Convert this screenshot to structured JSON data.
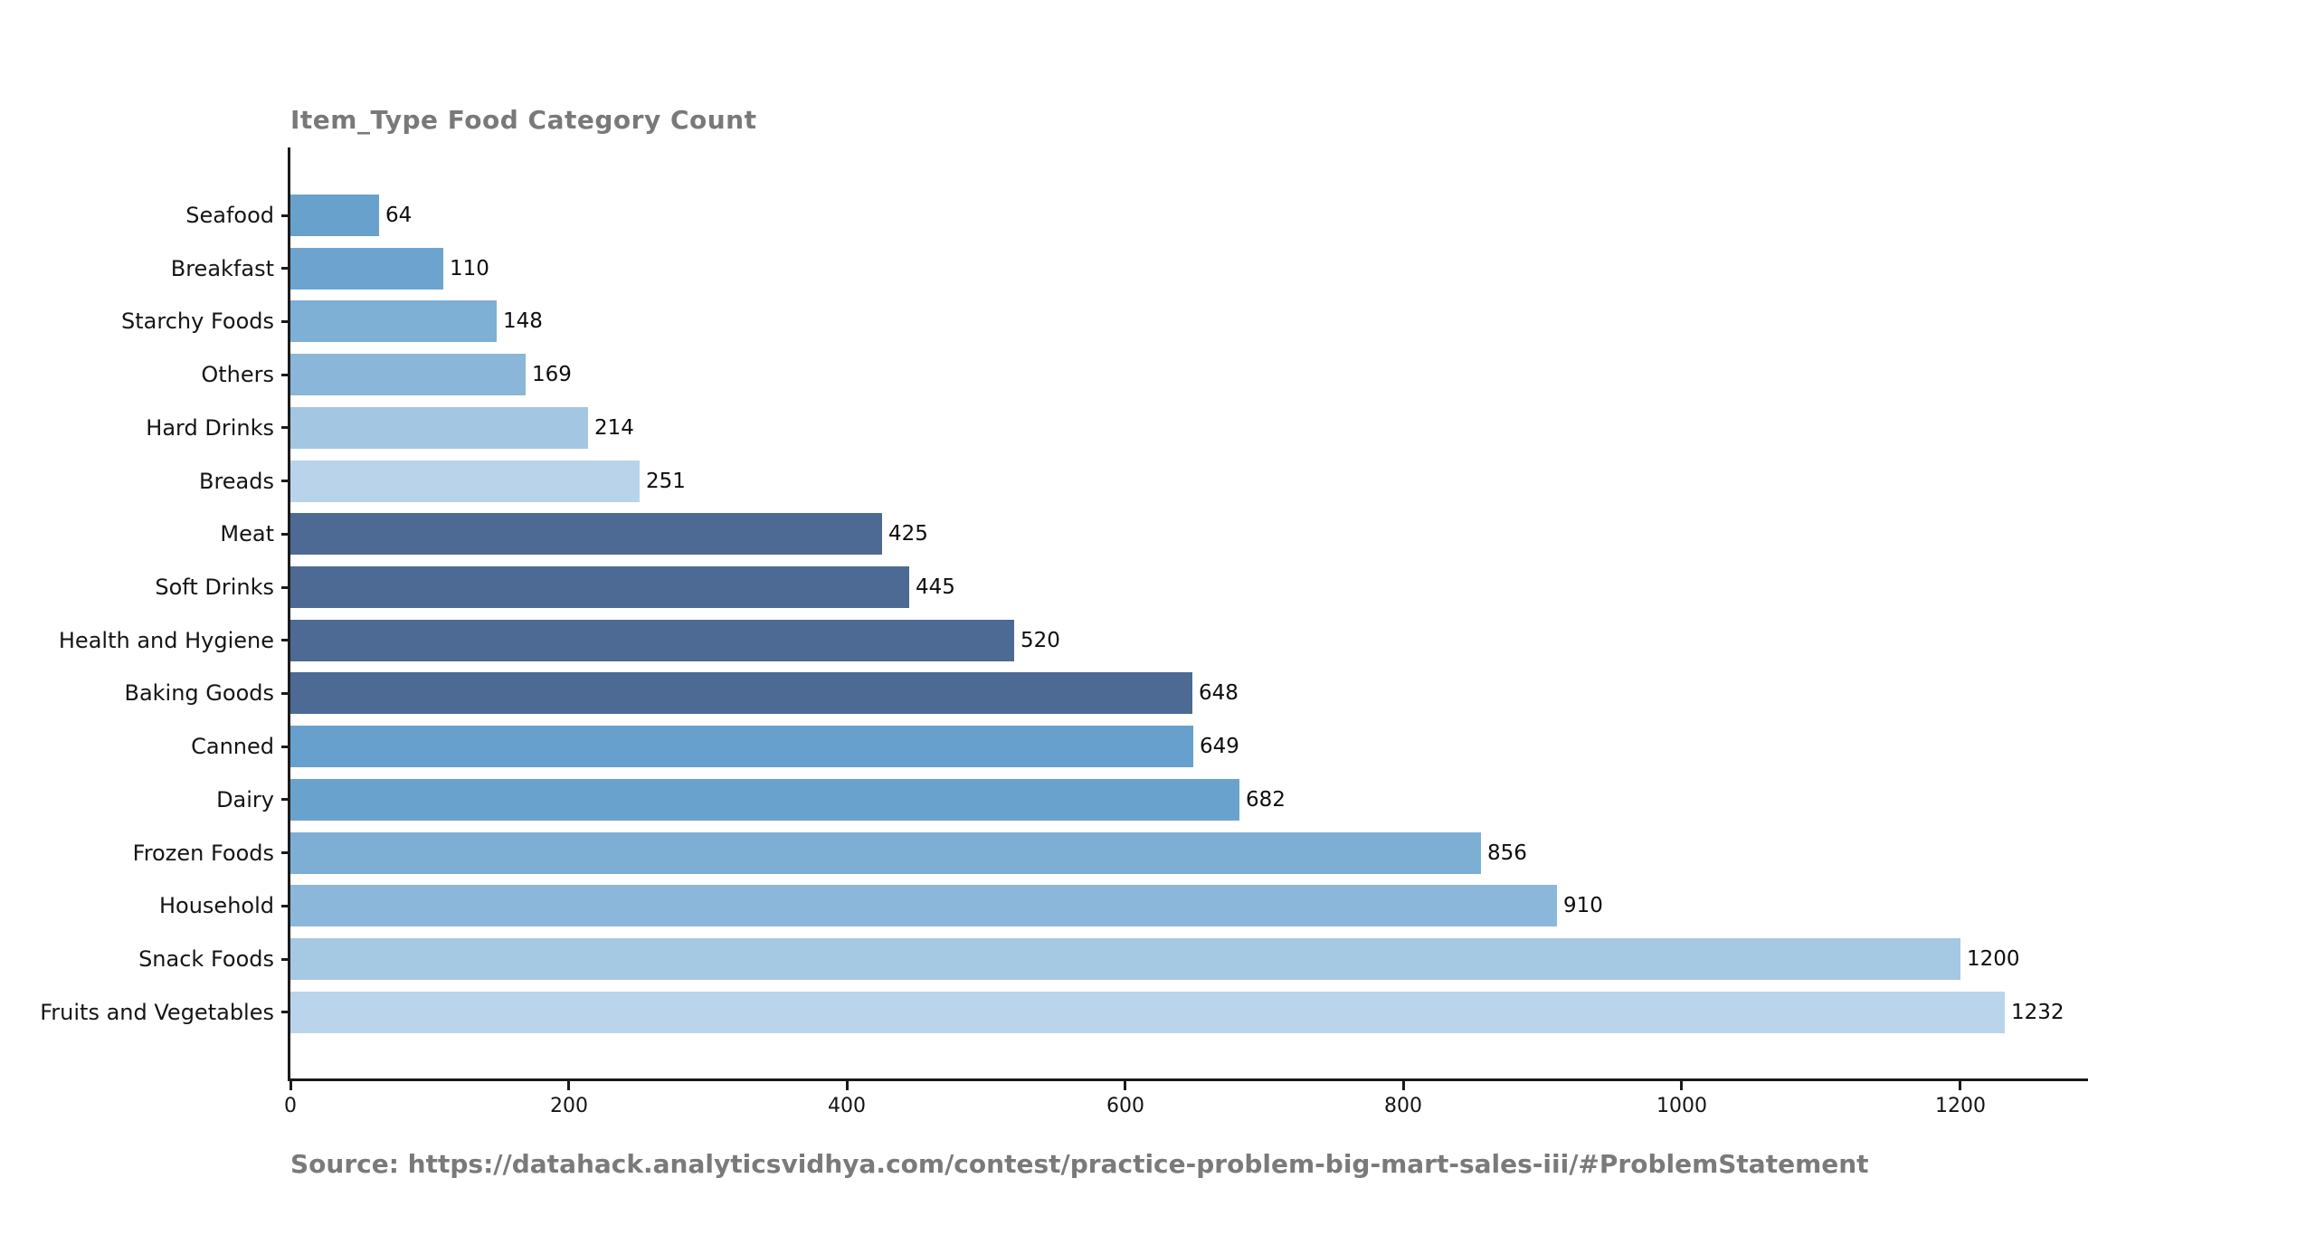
{
  "title": "Item_Type Food Category Count",
  "source_note": "Source: https://datahack.analyticsvidhya.com/contest/practice-problem-big-mart-sales-iii/#ProblemStatement",
  "colors": {
    "background": "#ffffff",
    "title_text": "#797979",
    "axis": "#1a1a1a",
    "label_text": "#151515",
    "dark_bar": "#4c6a93"
  },
  "chart_data": {
    "type": "bar",
    "orientation": "horizontal",
    "title": "Item_Type Food Category Count",
    "xlabel": "",
    "ylabel": "",
    "grid": false,
    "legend": null,
    "value_labels": true,
    "xlim": [
      0,
      1292
    ],
    "x_ticks": [
      0,
      200,
      400,
      600,
      800,
      1000,
      1200
    ],
    "categories": [
      "Seafood",
      "Breakfast",
      "Starchy Foods",
      "Others",
      "Hard Drinks",
      "Breads",
      "Meat",
      "Soft Drinks",
      "Health and Hygiene",
      "Baking Goods",
      "Canned",
      "Dairy",
      "Frozen Foods",
      "Household",
      "Snack Foods",
      "Fruits and Vegetables"
    ],
    "values": [
      64,
      110,
      148,
      169,
      214,
      251,
      425,
      445,
      520,
      648,
      649,
      682,
      856,
      910,
      1200,
      1232
    ],
    "bar_colors": [
      "#69a1cd",
      "#6ca4cf",
      "#7eafd5",
      "#8ab6d9",
      "#a3c6e2",
      "#b9d4ea",
      "#4c6a93",
      "#4c6a93",
      "#4c6a93",
      "#4c6a93",
      "#67a0cc",
      "#6aa2ce",
      "#7dafd5",
      "#8bb8da",
      "#a5c8e3",
      "#bad5eb"
    ]
  }
}
